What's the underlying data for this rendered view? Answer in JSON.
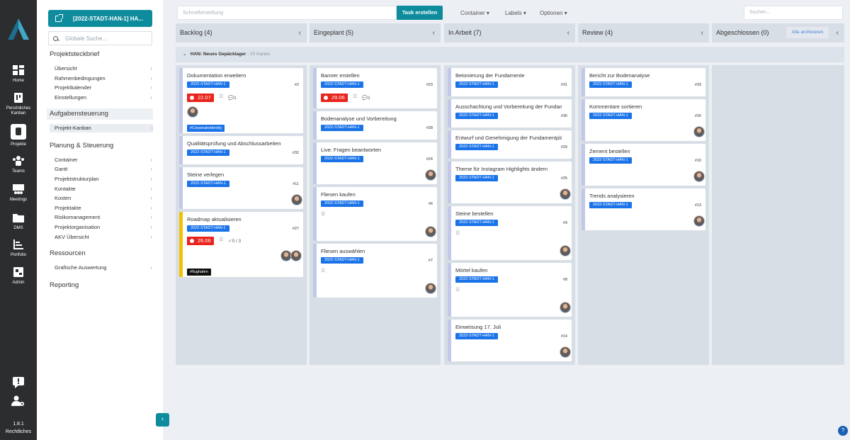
{
  "rail": {
    "items": [
      {
        "label": "Home"
      },
      {
        "label": "Persönliches Kanban"
      },
      {
        "label": "Projekte"
      },
      {
        "label": "Teams"
      },
      {
        "label": "Meetings"
      },
      {
        "label": "DMS"
      },
      {
        "label": "Portfolio"
      },
      {
        "label": "Admin"
      }
    ],
    "version": "1.8.1",
    "legal": "Rechtliches"
  },
  "sidebar": {
    "project_button": "[2022-STADT-HAN-1] HA...",
    "search_placeholder": "Globale Suche...",
    "sections": {
      "projektsteckbrief": "Projektsteckbrief",
      "aufgabensteuerung": "Aufgabensteuerung",
      "planung": "Planung & Steuerung",
      "ressourcen": "Ressourcen",
      "reporting": "Reporting"
    },
    "steckbrief_items": [
      "Übersicht",
      "Rahmenbedingungen",
      "Projektkalender",
      "Einstellungen"
    ],
    "aufgaben_items": [
      "Projekt-Kanban"
    ],
    "planung_items": [
      "Container",
      "Gantt",
      "Projektstrukturplan",
      "Kontakte",
      "Kosten",
      "Projektakte",
      "Risikomanagement",
      "Projektorganisation",
      "AKV Übersicht"
    ],
    "ressourcen_items": [
      "Grafische Auswertung"
    ]
  },
  "toolbar": {
    "quick_placeholder": "Schnellerstellung",
    "create_task": "Task erstellen",
    "menu_container": "Container",
    "menu_labels": "Labels",
    "menu_options": "Optionen",
    "search_placeholder": "Suchen..."
  },
  "board": {
    "swimlane": {
      "title": "HAN: Neues Gepäcklager",
      "count": "- 20 Karten"
    },
    "archive_all": "Alle archivieren",
    "columns": [
      {
        "title": "Backlog (4)"
      },
      {
        "title": "Eingeplant (5)"
      },
      {
        "title": "In Arbeit (7)"
      },
      {
        "title": "Review (4)"
      },
      {
        "title": "Abgeschlossen (0)"
      }
    ],
    "tag": "2022-STADT-HAN-1",
    "cards": {
      "c1": {
        "title": "Dokumentation erweitern",
        "num": "#2",
        "due": "22.07",
        "comments": "1",
        "label": "#CorporateIdentity"
      },
      "c2": {
        "title": "Qualitätsprüfung und Abschlussarbeiten",
        "num": "#32"
      },
      "c3": {
        "title": "Steine verlegen",
        "num": "#11"
      },
      "c4": {
        "title": "Roadmap aktualisieren",
        "num": "#27",
        "due": "26.06",
        "checklist": "0 / 3",
        "label": "#flughafen"
      },
      "e1": {
        "title": "Banner erstellen",
        "num": "#23",
        "due": "29.06",
        "comments": "1"
      },
      "e2": {
        "title": "Bodenanalyse und Vorbereitung",
        "num": "#28"
      },
      "e3": {
        "title": "Live: Fragen beantworten",
        "num": "#24"
      },
      "e4": {
        "title": "Fliesen kaufen",
        "num": "#6"
      },
      "e5": {
        "title": "Fliesen auswählen",
        "num": "#7"
      },
      "a1": {
        "title": "Betonierung der Fundamente",
        "num": "#31"
      },
      "a2": {
        "title": "Ausschachtung und Vorbereitung der Fundam",
        "num": "#30"
      },
      "a3": {
        "title": "Entwurf und Genehmigung der Fundamentplä",
        "num": "#29"
      },
      "a4": {
        "title": "Theme für Instagram Highlights ändern",
        "num": "#25"
      },
      "a5": {
        "title": "Steine bestellen",
        "num": "#9"
      },
      "a6": {
        "title": "Mörtel kaufen",
        "num": "#8"
      },
      "a7": {
        "title": "Einweisung 17. Juli",
        "num": "#14"
      },
      "r1": {
        "title": "Bericht zur Bodenanalyse",
        "num": "#33"
      },
      "r2": {
        "title": "Kommentare sortieren",
        "num": "#26"
      },
      "r3": {
        "title": "Zement bestellen",
        "num": "#10"
      },
      "r4": {
        "title": "Trends analysieren",
        "num": "#13"
      }
    }
  },
  "colors": {
    "accent": "#0e8c9d",
    "tag_blue": "#1a73e8",
    "due_red": "#e8241c",
    "rail": "#2b2d2f"
  }
}
